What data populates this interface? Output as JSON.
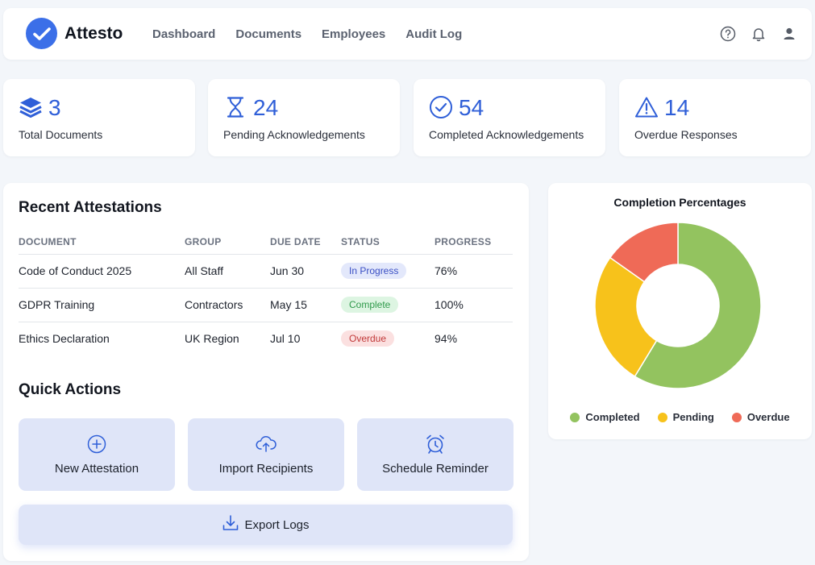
{
  "app": {
    "name": "Attesto"
  },
  "nav": [
    "Dashboard",
    "Documents",
    "Employees",
    "Audit Log"
  ],
  "header_icons": [
    "help-icon",
    "bell-icon",
    "user-icon"
  ],
  "stats": [
    {
      "icon": "layers-icon",
      "value": "3",
      "label": "Total Documents"
    },
    {
      "icon": "hourglass-icon",
      "value": "24",
      "label": "Pending Acknowledgements"
    },
    {
      "icon": "check-circle-icon",
      "value": "54",
      "label": "Completed Acknowledgements"
    },
    {
      "icon": "warning-icon",
      "value": "14",
      "label": "Overdue Responses"
    }
  ],
  "recent": {
    "title": "Recent Attestations",
    "columns": [
      "DOCUMENT",
      "GROUP",
      "DUE DATE",
      "STATUS",
      "PROGRESS"
    ],
    "rows": [
      {
        "document": "Code of Conduct 2025",
        "group": "All Staff",
        "due": "Jun 30",
        "status": "In Progress",
        "progress": "76%"
      },
      {
        "document": "GDPR Training",
        "group": "Contractors",
        "due": "May 15",
        "status": "Complete",
        "progress": "100%"
      },
      {
        "document": "Ethics Declaration",
        "group": "UK Region",
        "due": "Jul 10",
        "status": "Overdue",
        "progress": "94%"
      }
    ]
  },
  "quick_actions": {
    "title": "Quick Actions",
    "items": [
      {
        "icon": "plus-circle-icon",
        "label": "New Attestation"
      },
      {
        "icon": "upload-cloud-icon",
        "label": "Import Recipients"
      },
      {
        "icon": "alarm-clock-icon",
        "label": "Schedule Reminder"
      }
    ],
    "export": {
      "icon": "download-icon",
      "label": "Export Logs"
    }
  },
  "chart_data": {
    "type": "pie",
    "title": "Completion Percentages",
    "categories": [
      "Completed",
      "Pending",
      "Overdue"
    ],
    "values": [
      54,
      24,
      14
    ],
    "colors": [
      "#93c35f",
      "#f7c21b",
      "#ef6a57"
    ],
    "legend": "bottom"
  },
  "colors": {
    "accent": "#3b6fe8",
    "stat_number": "#2f5fd8",
    "card_bg": "#ffffff",
    "page_bg": "#f3f6fa",
    "action_bg": "#dfe5f8"
  }
}
